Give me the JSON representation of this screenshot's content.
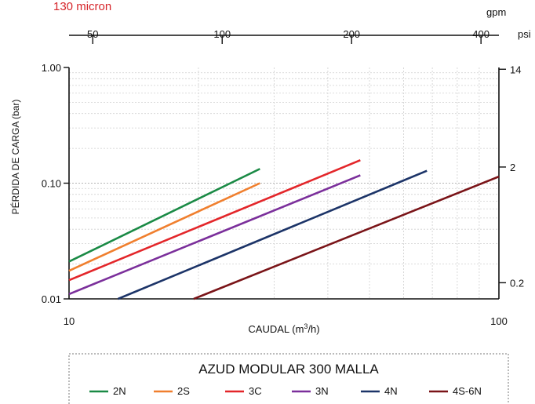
{
  "header": {
    "subtitle": "130 micron"
  },
  "chart_data": {
    "type": "line",
    "title": "AZUD MODULAR 300 MALLA",
    "subtitle": "130 micron",
    "xlabel_bottom": "CAUDAL (m3/h)",
    "xlabel_bottom_display": "CAUDAL (m³/h)",
    "ylabel_left": "PÉRDIDA DE CARGA  (bar)",
    "x_unit_top": "gpm",
    "y_unit_right": "psi",
    "xscale": "log",
    "yscale": "log",
    "xlim": [
      10,
      100
    ],
    "ylim": [
      0.01,
      1.0
    ],
    "grid": true,
    "legend_position": "bottom",
    "x_ticks_bottom": [
      {
        "value": 10,
        "label": "10"
      },
      {
        "value": 100,
        "label": "100"
      }
    ],
    "x_ticks_top": [
      {
        "value": 50,
        "label": "50"
      },
      {
        "value": 100,
        "label": "100"
      },
      {
        "value": 200,
        "label": "200"
      },
      {
        "value": 400,
        "label": "400"
      }
    ],
    "y_ticks_left": [
      {
        "value": 0.01,
        "label": "0.01"
      },
      {
        "value": 0.1,
        "label": "0.10"
      },
      {
        "value": 1.0,
        "label": "1.00"
      }
    ],
    "y_ticks_right": [
      {
        "value": 0.2,
        "label": "0.2"
      },
      {
        "value": 2,
        "label": "2"
      },
      {
        "value": 14,
        "label": "14"
      }
    ],
    "series": [
      {
        "name": "2N",
        "color": "#1a8a45",
        "x": [
          10,
          27.8
        ],
        "y": [
          0.021,
          0.133
        ]
      },
      {
        "name": "2S",
        "color": "#f07f2e",
        "x": [
          10,
          27.8
        ],
        "y": [
          0.0175,
          0.1
        ]
      },
      {
        "name": "3C",
        "color": "#e3262a",
        "x": [
          10,
          47.6
        ],
        "y": [
          0.0145,
          0.158
        ]
      },
      {
        "name": "3N",
        "color": "#7b2f9b",
        "x": [
          10,
          47.6
        ],
        "y": [
          0.011,
          0.117
        ]
      },
      {
        "name": "4N",
        "color": "#1c3468",
        "x": [
          13,
          68
        ],
        "y": [
          0.01,
          0.128
        ]
      },
      {
        "name": "4S-6N",
        "color": "#7a1418",
        "x": [
          19.5,
          100
        ],
        "y": [
          0.01,
          0.114
        ]
      }
    ]
  }
}
